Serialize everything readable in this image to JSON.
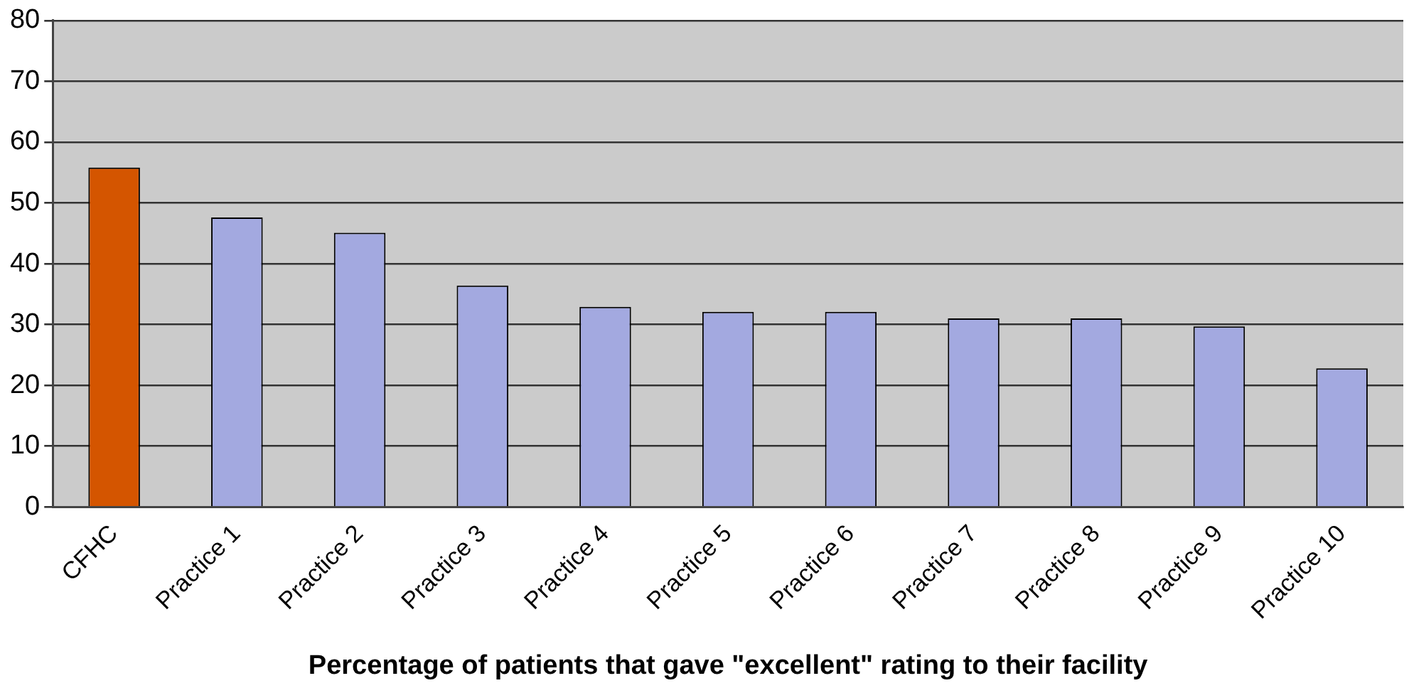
{
  "chart_data": {
    "type": "bar",
    "xlabel": "Percentage of patients that gave \"excellent\" rating to their facility",
    "categories": [
      "CFHC",
      "Practice 1",
      "Practice 2",
      "Practice 3",
      "Practice 4",
      "Practice 5",
      "Practice 6",
      "Practice 7",
      "Practice 8",
      "Practice 9",
      "Practice 10"
    ],
    "values": [
      55.8,
      47.6,
      45.1,
      36.4,
      32.9,
      32.1,
      32.1,
      31.0,
      31.0,
      29.7,
      22.8
    ],
    "colors": [
      "#d45500",
      "#a3a9e0",
      "#a3a9e0",
      "#a3a9e0",
      "#a3a9e0",
      "#a3a9e0",
      "#a3a9e0",
      "#a3a9e0",
      "#a3a9e0",
      "#a3a9e0",
      "#a3a9e0"
    ],
    "ylim": [
      0,
      80
    ],
    "yticks": [
      0,
      10,
      20,
      30,
      40,
      50,
      60,
      70,
      80
    ],
    "grid": "y",
    "legend": false
  }
}
